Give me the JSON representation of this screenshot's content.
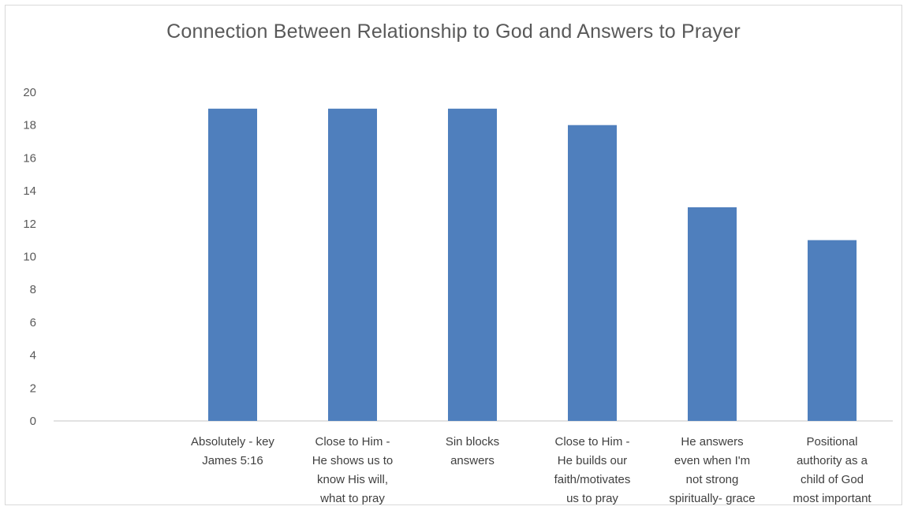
{
  "chart_data": {
    "type": "bar",
    "title": "Connection Between Relationship to God and Answers to Prayer",
    "xlabel": "",
    "ylabel": "",
    "ylim": [
      0,
      20
    ],
    "yticks": [
      0,
      2,
      4,
      6,
      8,
      10,
      12,
      14,
      16,
      18,
      20
    ],
    "grid": false,
    "legend": "none",
    "bar_color": "#4f7fbd",
    "categories": [
      [
        "Absolutely - key",
        "James 5:16"
      ],
      [
        "Close to Him -",
        "He shows us to",
        "know His will,",
        "what to pray"
      ],
      [
        "Sin blocks",
        "answers"
      ],
      [
        "Close to Him -",
        "He builds our",
        "faith/motivates",
        "us to pray"
      ],
      [
        "He answers",
        "even when I'm",
        "not strong",
        "spiritually- grace"
      ],
      [
        "Positional",
        "authority as a",
        "child of God",
        "most important"
      ]
    ],
    "values": [
      19,
      19,
      19,
      18,
      13,
      11
    ]
  }
}
